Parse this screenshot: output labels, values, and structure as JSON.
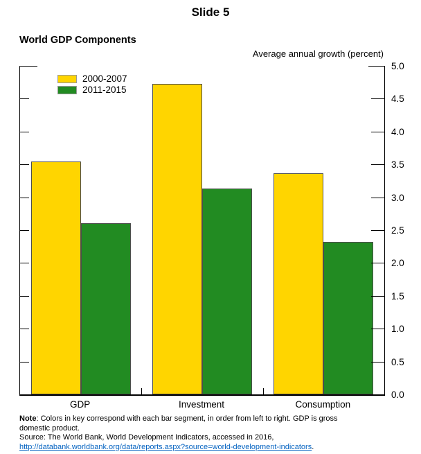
{
  "page": {
    "title": "Slide 5"
  },
  "chart": {
    "title": "World GDP Components",
    "unit_label": "Average annual growth (percent)"
  },
  "chart_data": {
    "type": "bar",
    "title": "World GDP Components",
    "ylabel": "Average annual growth (percent)",
    "categories": [
      "GDP",
      "Investment",
      "Consumption"
    ],
    "series": [
      {
        "name": "2000-2007",
        "color": "#FFD500",
        "values": [
          3.54,
          4.73,
          3.36
        ]
      },
      {
        "name": "2011-2015",
        "color": "#228B22",
        "values": [
          2.61,
          3.13,
          2.32
        ]
      }
    ],
    "ylim": [
      0.0,
      5.0
    ],
    "ytick_step": 0.5,
    "ytick_labels": [
      "0.0",
      "0.5",
      "1.0",
      "1.5",
      "2.0",
      "2.5",
      "3.0",
      "3.5",
      "4.0",
      "4.5",
      "5.0"
    ],
    "yaxis_side": "right",
    "grid": false,
    "legend_position": "top-left",
    "bar_border_color": "#4d4d4d",
    "axis_color": "#000000"
  },
  "notes": {
    "note_label": "Note",
    "note_line1_rest": ": Colors in key correspond with each bar segment, in order from left to right. GDP is gross",
    "note_line2": "domestic product.",
    "source_line": "Source: The World Bank, World Development Indicators, accessed in 2016,",
    "link_text": "http://databank.worldbank.org/data/reports.aspx?source=world-development-indicators",
    "link_suffix": "."
  }
}
